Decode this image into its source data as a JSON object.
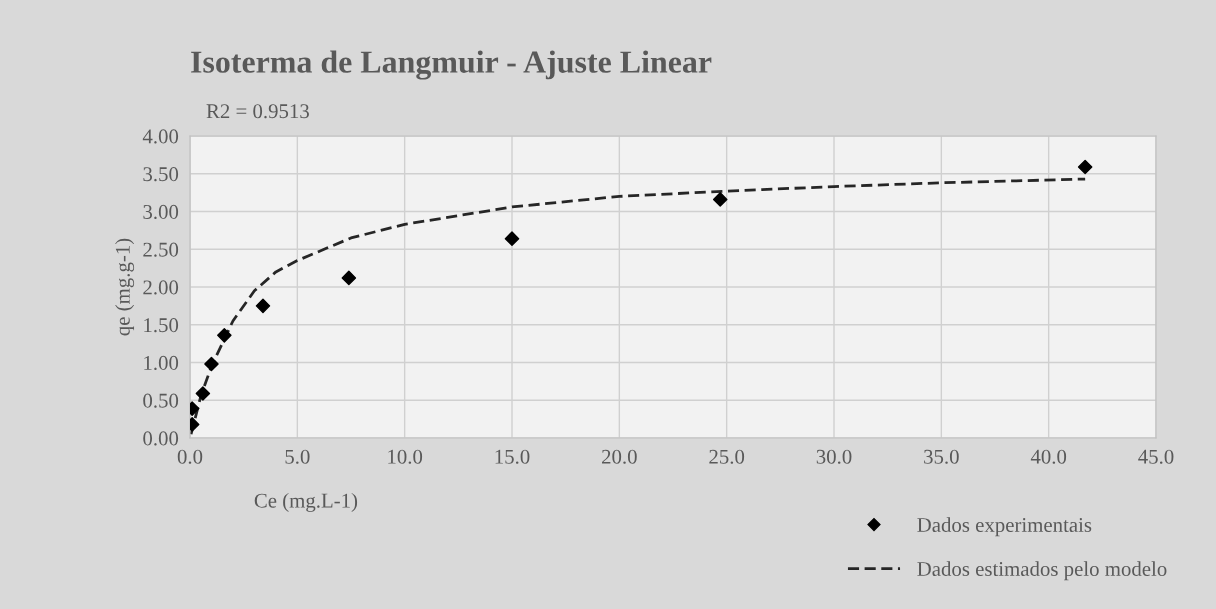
{
  "chart_data": {
    "type": "scatter",
    "title": "Isoterma de Langmuir - Ajuste Linear",
    "xlabel": "Ce (mg.L-1)",
    "ylabel": "qe (mg.g-1)",
    "annotations": [
      "R2 = 0.9513"
    ],
    "series": [
      {
        "name": "Dados experimentais",
        "color": "#000000",
        "marker": "diamond",
        "x": [
          0.1,
          0.1,
          0.6,
          1.0,
          1.6,
          3.4,
          7.4,
          15.0,
          24.7,
          41.7
        ],
        "values": [
          0.39,
          0.18,
          0.59,
          0.98,
          1.36,
          1.75,
          2.12,
          2.64,
          3.16,
          3.59
        ]
      },
      {
        "name": "Dados estimados pelo modelo",
        "type": "line",
        "color": "#262626",
        "line_style": "dashed",
        "x": [
          0.05,
          0.5,
          1.0,
          2.0,
          3.0,
          4.0,
          5.0,
          7.5,
          10,
          15,
          20,
          25,
          30,
          35,
          41.7
        ],
        "values": [
          0.05,
          0.55,
          0.95,
          1.55,
          1.95,
          2.2,
          2.35,
          2.65,
          2.83,
          3.06,
          3.2,
          3.27,
          3.33,
          3.38,
          3.43
        ]
      }
    ],
    "xlim": [
      0,
      45
    ],
    "xticks": [
      {
        "value": 0,
        "label": "0.0"
      },
      {
        "value": 5,
        "label": "5.0"
      },
      {
        "value": 10,
        "label": "10.0"
      },
      {
        "value": 15,
        "label": "15.0"
      },
      {
        "value": 20,
        "label": "20.0"
      },
      {
        "value": 25,
        "label": "25.0"
      },
      {
        "value": 30,
        "label": "30.0"
      },
      {
        "value": 35,
        "label": "35.0"
      },
      {
        "value": 40,
        "label": "40.0"
      },
      {
        "value": 45,
        "label": "45.0"
      }
    ],
    "ylim": [
      0,
      4
    ],
    "yticks": [
      {
        "value": 0,
        "label": "0.00"
      },
      {
        "value": 0.5,
        "label": "0.50"
      },
      {
        "value": 1,
        "label": "1.00"
      },
      {
        "value": 1.5,
        "label": "1.50"
      },
      {
        "value": 2,
        "label": "2.00"
      },
      {
        "value": 2.5,
        "label": "2.50"
      },
      {
        "value": 3,
        "label": "3.00"
      },
      {
        "value": 3.5,
        "label": "3.50"
      },
      {
        "value": 4,
        "label": "4.00"
      }
    ],
    "grid": true,
    "legend": "bottom right"
  }
}
